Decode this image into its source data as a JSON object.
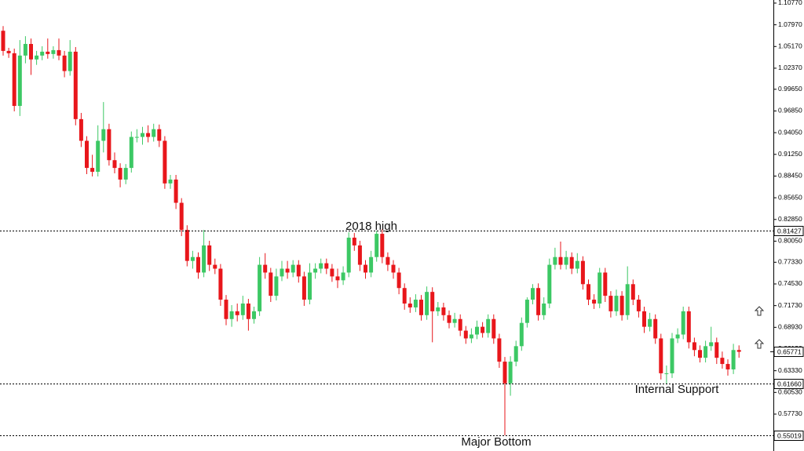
{
  "chart_data": {
    "type": "candlestick",
    "up_color": "#3cc864",
    "down_color": "#e8161b",
    "ylim": [
      0.5297,
      1.1117
    ],
    "yticks": [
      {
        "value": 1.1077,
        "label": "1.10770"
      },
      {
        "value": 1.0797,
        "label": "1.07970"
      },
      {
        "value": 1.0517,
        "label": "1.05170"
      },
      {
        "value": 1.0237,
        "label": "1.02370"
      },
      {
        "value": 0.9965,
        "label": "0.99650"
      },
      {
        "value": 0.9685,
        "label": "0.96850"
      },
      {
        "value": 0.9405,
        "label": "0.94050"
      },
      {
        "value": 0.9125,
        "label": "0.91250"
      },
      {
        "value": 0.8845,
        "label": "0.88450"
      },
      {
        "value": 0.8565,
        "label": "0.85650"
      },
      {
        "value": 0.8285,
        "label": "0.82850"
      },
      {
        "value": 0.8005,
        "label": "0.80050"
      },
      {
        "value": 0.7733,
        "label": "0.77330"
      },
      {
        "value": 0.7453,
        "label": "0.74530"
      },
      {
        "value": 0.7173,
        "label": "0.71730"
      },
      {
        "value": 0.6893,
        "label": "0.68930"
      },
      {
        "value": 0.6613,
        "label": "0.66130"
      },
      {
        "value": 0.6333,
        "label": "0.63330"
      },
      {
        "value": 0.6053,
        "label": "0.60530"
      },
      {
        "value": 0.5773,
        "label": "0.57730"
      }
    ],
    "levels": [
      {
        "value": 0.81427,
        "label": "0.81427"
      },
      {
        "value": 0.6166,
        "label": "0.61660"
      },
      {
        "value": 0.55019,
        "label": "0.55019"
      }
    ],
    "last_price": {
      "value": 0.65771,
      "label": "0.65771"
    },
    "annotations": [
      "2018 high",
      "Internal Support",
      "Major Bottom"
    ],
    "ohlc": [
      [
        1.072,
        1.078,
        1.04,
        1.046
      ],
      [
        1.046,
        1.05,
        1.037,
        1.043
      ],
      [
        1.043,
        1.049,
        0.968,
        0.975
      ],
      [
        0.975,
        1.06,
        0.962,
        1.04
      ],
      [
        1.04,
        1.065,
        1.03,
        1.055
      ],
      [
        1.055,
        1.062,
        1.015,
        1.035
      ],
      [
        1.035,
        1.046,
        1.028,
        1.04
      ],
      [
        1.04,
        1.052,
        1.034,
        1.045
      ],
      [
        1.045,
        1.062,
        1.036,
        1.042
      ],
      [
        1.042,
        1.052,
        1.036,
        1.047
      ],
      [
        1.047,
        1.062,
        1.034,
        1.04
      ],
      [
        1.04,
        1.046,
        1.012,
        1.02
      ],
      [
        1.02,
        1.06,
        1.014,
        1.045
      ],
      [
        1.045,
        1.051,
        0.95,
        0.958
      ],
      [
        0.958,
        0.966,
        0.922,
        0.93
      ],
      [
        0.93,
        0.936,
        0.887,
        0.895
      ],
      [
        0.895,
        0.912,
        0.884,
        0.89
      ],
      [
        0.89,
        0.95,
        0.884,
        0.93
      ],
      [
        0.93,
        0.98,
        0.915,
        0.945
      ],
      [
        0.945,
        0.952,
        0.898,
        0.905
      ],
      [
        0.905,
        0.915,
        0.888,
        0.895
      ],
      [
        0.895,
        0.901,
        0.87,
        0.88
      ],
      [
        0.88,
        0.9,
        0.874,
        0.895
      ],
      [
        0.895,
        0.942,
        0.889,
        0.935
      ],
      [
        0.935,
        0.945,
        0.928,
        0.935
      ],
      [
        0.935,
        0.948,
        0.925,
        0.94
      ],
      [
        0.94,
        0.95,
        0.928,
        0.935
      ],
      [
        0.935,
        0.952,
        0.929,
        0.945
      ],
      [
        0.945,
        0.951,
        0.922,
        0.93
      ],
      [
        0.93,
        0.936,
        0.868,
        0.875
      ],
      [
        0.875,
        0.886,
        0.868,
        0.88
      ],
      [
        0.88,
        0.886,
        0.842,
        0.85
      ],
      [
        0.85,
        0.856,
        0.807,
        0.815
      ],
      [
        0.815,
        0.821,
        0.768,
        0.775
      ],
      [
        0.775,
        0.788,
        0.765,
        0.78
      ],
      [
        0.78,
        0.786,
        0.752,
        0.76
      ],
      [
        0.76,
        0.815,
        0.754,
        0.795
      ],
      [
        0.795,
        0.801,
        0.762,
        0.77
      ],
      [
        0.77,
        0.778,
        0.758,
        0.765
      ],
      [
        0.765,
        0.771,
        0.717,
        0.725
      ],
      [
        0.725,
        0.731,
        0.692,
        0.7
      ],
      [
        0.7,
        0.718,
        0.69,
        0.71
      ],
      [
        0.71,
        0.72,
        0.697,
        0.705
      ],
      [
        0.705,
        0.73,
        0.699,
        0.72
      ],
      [
        0.72,
        0.726,
        0.685,
        0.7
      ],
      [
        0.7,
        0.716,
        0.694,
        0.71
      ],
      [
        0.71,
        0.78,
        0.704,
        0.77
      ],
      [
        0.77,
        0.785,
        0.752,
        0.76
      ],
      [
        0.76,
        0.766,
        0.722,
        0.73
      ],
      [
        0.73,
        0.765,
        0.724,
        0.755
      ],
      [
        0.755,
        0.775,
        0.749,
        0.765
      ],
      [
        0.765,
        0.775,
        0.752,
        0.76
      ],
      [
        0.76,
        0.776,
        0.754,
        0.77
      ],
      [
        0.77,
        0.776,
        0.747,
        0.755
      ],
      [
        0.755,
        0.761,
        0.717,
        0.725
      ],
      [
        0.725,
        0.772,
        0.719,
        0.76
      ],
      [
        0.76,
        0.772,
        0.752,
        0.765
      ],
      [
        0.765,
        0.778,
        0.759,
        0.772
      ],
      [
        0.772,
        0.778,
        0.758,
        0.765
      ],
      [
        0.765,
        0.771,
        0.748,
        0.755
      ],
      [
        0.755,
        0.765,
        0.74,
        0.75
      ],
      [
        0.75,
        0.768,
        0.744,
        0.76
      ],
      [
        0.76,
        0.812,
        0.754,
        0.805
      ],
      [
        0.805,
        0.811,
        0.788,
        0.795
      ],
      [
        0.795,
        0.801,
        0.762,
        0.77
      ],
      [
        0.77,
        0.776,
        0.752,
        0.76
      ],
      [
        0.76,
        0.788,
        0.754,
        0.78
      ],
      [
        0.78,
        0.814,
        0.774,
        0.81
      ],
      [
        0.81,
        0.816,
        0.772,
        0.78
      ],
      [
        0.78,
        0.786,
        0.762,
        0.77
      ],
      [
        0.77,
        0.776,
        0.752,
        0.76
      ],
      [
        0.76,
        0.766,
        0.732,
        0.74
      ],
      [
        0.74,
        0.746,
        0.712,
        0.72
      ],
      [
        0.72,
        0.728,
        0.708,
        0.715
      ],
      [
        0.715,
        0.732,
        0.709,
        0.725
      ],
      [
        0.725,
        0.731,
        0.698,
        0.705
      ],
      [
        0.705,
        0.742,
        0.699,
        0.735
      ],
      [
        0.735,
        0.741,
        0.67,
        0.71
      ],
      [
        0.71,
        0.722,
        0.704,
        0.715
      ],
      [
        0.715,
        0.721,
        0.698,
        0.705
      ],
      [
        0.705,
        0.711,
        0.688,
        0.695
      ],
      [
        0.695,
        0.708,
        0.689,
        0.7
      ],
      [
        0.7,
        0.706,
        0.678,
        0.685
      ],
      [
        0.685,
        0.691,
        0.668,
        0.675
      ],
      [
        0.675,
        0.688,
        0.669,
        0.68
      ],
      [
        0.68,
        0.698,
        0.674,
        0.69
      ],
      [
        0.69,
        0.696,
        0.676,
        0.682
      ],
      [
        0.682,
        0.706,
        0.676,
        0.7
      ],
      [
        0.7,
        0.706,
        0.668,
        0.675
      ],
      [
        0.675,
        0.681,
        0.637,
        0.645
      ],
      [
        0.645,
        0.651,
        0.55,
        0.617
      ],
      [
        0.617,
        0.652,
        0.601,
        0.645
      ],
      [
        0.645,
        0.672,
        0.639,
        0.665
      ],
      [
        0.665,
        0.702,
        0.659,
        0.695
      ],
      [
        0.695,
        0.728,
        0.689,
        0.725
      ],
      [
        0.725,
        0.745,
        0.719,
        0.74
      ],
      [
        0.74,
        0.746,
        0.698,
        0.705
      ],
      [
        0.705,
        0.728,
        0.699,
        0.72
      ],
      [
        0.72,
        0.778,
        0.714,
        0.77
      ],
      [
        0.77,
        0.792,
        0.764,
        0.78
      ],
      [
        0.78,
        0.8,
        0.764,
        0.77
      ],
      [
        0.77,
        0.788,
        0.764,
        0.78
      ],
      [
        0.78,
        0.786,
        0.758,
        0.765
      ],
      [
        0.765,
        0.785,
        0.759,
        0.775
      ],
      [
        0.775,
        0.781,
        0.738,
        0.745
      ],
      [
        0.745,
        0.751,
        0.718,
        0.725
      ],
      [
        0.725,
        0.732,
        0.713,
        0.72
      ],
      [
        0.72,
        0.766,
        0.714,
        0.76
      ],
      [
        0.76,
        0.766,
        0.722,
        0.73
      ],
      [
        0.73,
        0.736,
        0.702,
        0.71
      ],
      [
        0.71,
        0.738,
        0.704,
        0.73
      ],
      [
        0.73,
        0.736,
        0.698,
        0.705
      ],
      [
        0.705,
        0.768,
        0.699,
        0.745
      ],
      [
        0.745,
        0.751,
        0.718,
        0.725
      ],
      [
        0.725,
        0.731,
        0.702,
        0.71
      ],
      [
        0.71,
        0.716,
        0.682,
        0.69
      ],
      [
        0.69,
        0.708,
        0.684,
        0.7
      ],
      [
        0.7,
        0.706,
        0.668,
        0.675
      ],
      [
        0.675,
        0.681,
        0.622,
        0.63
      ],
      [
        0.63,
        0.64,
        0.616,
        0.63
      ],
      [
        0.63,
        0.682,
        0.624,
        0.675
      ],
      [
        0.675,
        0.688,
        0.669,
        0.68
      ],
      [
        0.68,
        0.716,
        0.674,
        0.71
      ],
      [
        0.71,
        0.716,
        0.662,
        0.67
      ],
      [
        0.67,
        0.676,
        0.652,
        0.66
      ],
      [
        0.66,
        0.666,
        0.644,
        0.65
      ],
      [
        0.65,
        0.672,
        0.644,
        0.665
      ],
      [
        0.665,
        0.69,
        0.659,
        0.67
      ],
      [
        0.67,
        0.676,
        0.642,
        0.65
      ],
      [
        0.65,
        0.658,
        0.636,
        0.642
      ],
      [
        0.642,
        0.648,
        0.627,
        0.635
      ],
      [
        0.635,
        0.668,
        0.629,
        0.66
      ],
      [
        0.66,
        0.666,
        0.65,
        0.6577
      ]
    ]
  }
}
